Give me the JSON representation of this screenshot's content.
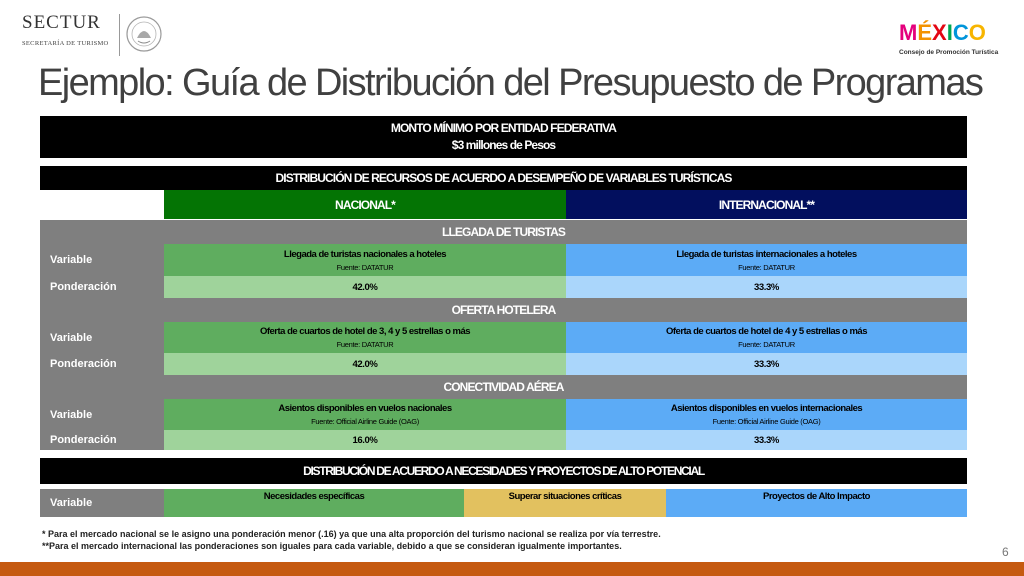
{
  "header": {
    "sectur_name": "SECTUR",
    "sectur_sub": "SECRETARÍA DE TURISMO",
    "mexico_letters": [
      "M",
      "É",
      "X",
      "I",
      "C",
      "O"
    ],
    "mexico_colors": [
      "#e4007c",
      "#f39200",
      "#e30613",
      "#00a651",
      "#0095da",
      "#f7b500"
    ],
    "mexico_tagline": "Consejo de Promoción Turística"
  },
  "title": "Ejemplo: Guía de Distribución del Presupuesto de Programas",
  "table": {
    "monto_title": "MONTO MÍNIMO POR ENTIDAD FEDERATIVA",
    "monto_value": "$3 millones de Pesos",
    "distribucion_title": "DISTRIBUCIÓN DE RECURSOS DE ACUERDO A DESEMPEÑO DE VARIABLES TURÍSTICAS",
    "col_nacional": "NACIONAL*",
    "col_internacional": "INTERNACIONAL**",
    "variable_label": "Variable",
    "ponderacion_label": "Ponderación",
    "sections": [
      {
        "title": "LLEGADA DE TURISTAS",
        "nacional_var": "Llegada de turistas nacionales a hoteles",
        "nacional_src": "Fuente: DATATUR",
        "internacional_var": "Llegada de turistas internacionales a hoteles",
        "internacional_src": "Fuente: DATATUR",
        "nacional_pct": "42.0%",
        "internacional_pct": "33.3%"
      },
      {
        "title": "OFERTA HOTELERA",
        "nacional_var": "Oferta de cuartos de hotel de 3, 4 y 5 estrellas o más",
        "nacional_src": "Fuente: DATATUR",
        "internacional_var": "Oferta de cuartos de hotel de 4 y 5 estrellas o más",
        "internacional_src": "Fuente: DATATUR",
        "nacional_pct": "42.0%",
        "internacional_pct": "33.3%"
      },
      {
        "title": "CONECTIVIDAD AÉREA",
        "nacional_var": "Asientos disponibles en vuelos nacionales",
        "nacional_src": "Fuente: Official Airline Guide (OAG)",
        "internacional_var": "Asientos disponibles en vuelos internacionales",
        "internacional_src": "Fuente: Official Airline Guide (OAG)",
        "nacional_pct": "16.0%",
        "internacional_pct": "33.3%"
      }
    ],
    "necesidades_title": "DISTRIBUCIÓN DE ACUERDO A NECESIDADES Y PROYECTOS DE ALTO POTENCIAL",
    "necesidades_variable": "Variable",
    "necesidades_items": [
      "Necesidades específicas",
      "Superar situaciones críticas",
      "Proyectos de Alto Impacto"
    ]
  },
  "footnotes": [
    "* Para el mercado nacional se le asigno una ponderación menor (.16) ya que una alta proporción del turismo nacional se realiza por vía terrestre.",
    "**Para el mercado internacional las ponderaciones son iguales para cada variable, debido a que se consideran igualmente importantes."
  ],
  "page_number": "6"
}
